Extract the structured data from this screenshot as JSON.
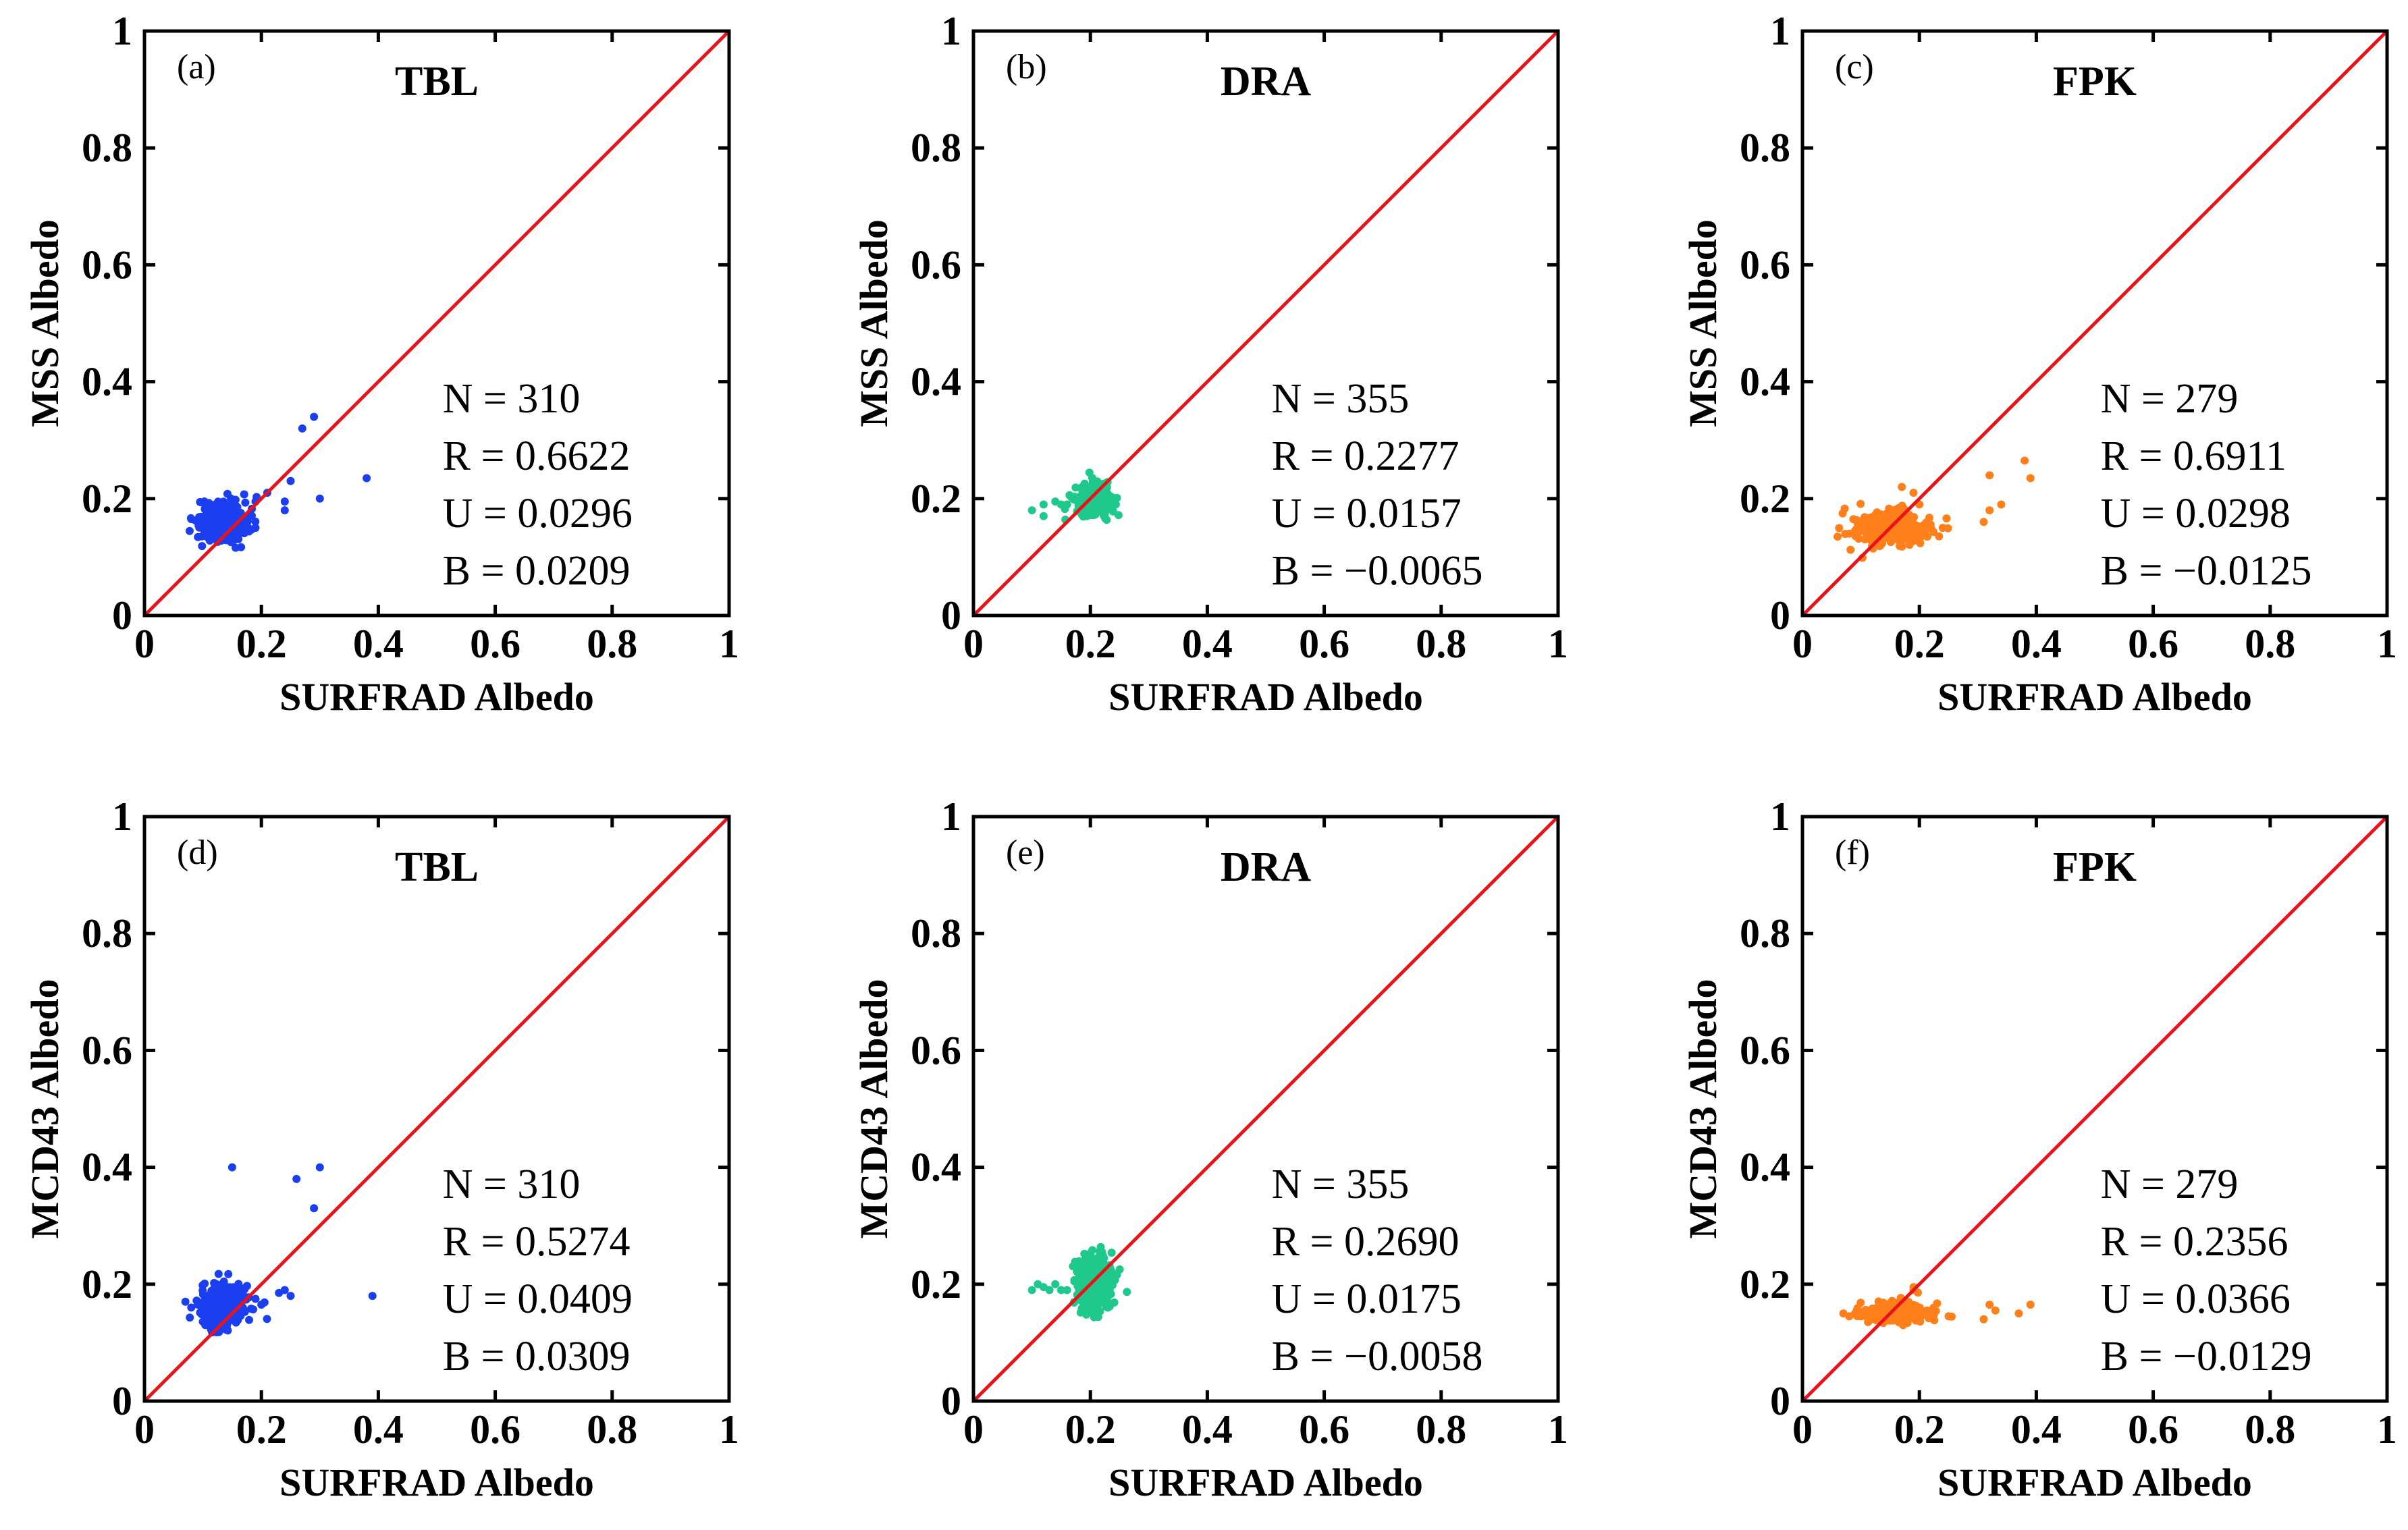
{
  "colors": {
    "TBL": "#1a3ef0",
    "DRA": "#1fc98c",
    "FPK": "#ff7f1a",
    "reference_line": "#e8141c"
  },
  "chart_data": [
    {
      "panel": "(a)",
      "site": "TBL",
      "type": "scatter",
      "xlabel": "SURFRAD Albedo",
      "ylabel": "MSS Albedo",
      "xlim": [
        0,
        1
      ],
      "ylim": [
        0,
        1
      ],
      "ticks": [
        "0",
        "0.2",
        "0.4",
        "0.6",
        "0.8",
        "1"
      ],
      "stats": [
        "N = 310",
        "R = 0.6622",
        "U = 0.0296",
        "B = 0.0209"
      ],
      "outliers": [
        [
          0.08,
          0.165
        ],
        [
          0.1,
          0.16
        ],
        [
          0.16,
          0.175
        ],
        [
          0.17,
          0.16
        ],
        [
          0.19,
          0.15
        ],
        [
          0.19,
          0.195
        ],
        [
          0.21,
          0.21
        ],
        [
          0.24,
          0.18
        ],
        [
          0.24,
          0.195
        ],
        [
          0.25,
          0.23
        ],
        [
          0.27,
          0.32
        ],
        [
          0.29,
          0.34
        ],
        [
          0.3,
          0.2
        ],
        [
          0.38,
          0.235
        ]
      ],
      "cluster": {
        "x_center": 0.135,
        "y_center": 0.16,
        "x_spread": 0.05,
        "y_spread": 0.042,
        "count": 296
      }
    },
    {
      "panel": "(b)",
      "site": "DRA",
      "type": "scatter",
      "xlabel": "SURFRAD Albedo",
      "ylabel": "MSS Albedo",
      "xlim": [
        0,
        1
      ],
      "ylim": [
        0,
        1
      ],
      "ticks": [
        "0",
        "0.2",
        "0.4",
        "0.6",
        "0.8",
        "1"
      ],
      "stats": [
        "N = 355",
        "R = 0.2277",
        "U = 0.0157",
        "B = −0.0065"
      ],
      "outliers": [
        [
          0.1,
          0.18
        ],
        [
          0.12,
          0.19
        ],
        [
          0.12,
          0.17
        ],
        [
          0.14,
          0.195
        ],
        [
          0.15,
          0.19
        ],
        [
          0.16,
          0.19
        ],
        [
          0.17,
          0.2
        ],
        [
          0.18,
          0.19
        ],
        [
          0.22,
          0.215
        ]
      ],
      "cluster": {
        "x_center": 0.205,
        "y_center": 0.198,
        "x_spread": 0.035,
        "y_spread": 0.03,
        "count": 346
      }
    },
    {
      "panel": "(c)",
      "site": "FPK",
      "type": "scatter",
      "xlabel": "SURFRAD Albedo",
      "ylabel": "MSS Albedo",
      "xlim": [
        0,
        1
      ],
      "ylim": [
        0,
        1
      ],
      "ticks": [
        "0",
        "0.2",
        "0.4",
        "0.6",
        "0.8",
        "1"
      ],
      "stats": [
        "N = 279",
        "R = 0.6911",
        "U = 0.0298",
        "B = −0.0125"
      ],
      "outliers": [
        [
          0.06,
          0.135
        ],
        [
          0.08,
          0.14
        ],
        [
          0.09,
          0.145
        ],
        [
          0.1,
          0.15
        ],
        [
          0.17,
          0.22
        ],
        [
          0.19,
          0.21
        ],
        [
          0.2,
          0.19
        ],
        [
          0.24,
          0.15
        ],
        [
          0.31,
          0.16
        ],
        [
          0.32,
          0.18
        ],
        [
          0.32,
          0.24
        ],
        [
          0.34,
          0.19
        ],
        [
          0.38,
          0.265
        ],
        [
          0.39,
          0.235
        ]
      ],
      "cluster": {
        "x_center": 0.15,
        "y_center": 0.15,
        "x_spread": 0.075,
        "y_spread": 0.035,
        "count": 265
      }
    },
    {
      "panel": "(d)",
      "site": "TBL",
      "type": "scatter",
      "xlabel": "SURFRAD Albedo",
      "ylabel": "MCD43 Albedo",
      "xlim": [
        0,
        1
      ],
      "ylim": [
        0,
        1
      ],
      "ticks": [
        "0",
        "0.2",
        "0.4",
        "0.6",
        "0.8",
        "1"
      ],
      "stats": [
        "N = 310",
        "R = 0.5274",
        "U = 0.0409",
        "B = 0.0309"
      ],
      "outliers": [
        [
          0.07,
          0.17
        ],
        [
          0.08,
          0.16
        ],
        [
          0.15,
          0.4
        ],
        [
          0.16,
          0.165
        ],
        [
          0.17,
          0.18
        ],
        [
          0.19,
          0.175
        ],
        [
          0.2,
          0.165
        ],
        [
          0.23,
          0.185
        ],
        [
          0.24,
          0.19
        ],
        [
          0.25,
          0.18
        ],
        [
          0.26,
          0.38
        ],
        [
          0.29,
          0.33
        ],
        [
          0.3,
          0.4
        ],
        [
          0.39,
          0.18
        ]
      ],
      "cluster": {
        "x_center": 0.135,
        "y_center": 0.162,
        "x_spread": 0.05,
        "y_spread": 0.045,
        "count": 296
      }
    },
    {
      "panel": "(e)",
      "site": "DRA",
      "type": "scatter",
      "xlabel": "SURFRAD Albedo",
      "ylabel": "MCD43 Albedo",
      "xlim": [
        0,
        1
      ],
      "ylim": [
        0,
        1
      ],
      "ticks": [
        "0",
        "0.2",
        "0.4",
        "0.6",
        "0.8",
        "1"
      ],
      "stats": [
        "N = 355",
        "R = 0.2690",
        "U = 0.0175",
        "B = −0.0058"
      ],
      "outliers": [
        [
          0.1,
          0.19
        ],
        [
          0.11,
          0.2
        ],
        [
          0.12,
          0.195
        ],
        [
          0.13,
          0.19
        ],
        [
          0.14,
          0.2
        ],
        [
          0.15,
          0.19
        ],
        [
          0.16,
          0.19
        ],
        [
          0.19,
          0.16
        ],
        [
          0.2,
          0.155
        ],
        [
          0.21,
          0.155
        ],
        [
          0.22,
          0.25
        ],
        [
          0.22,
          0.255
        ]
      ],
      "cluster": {
        "x_center": 0.205,
        "y_center": 0.2,
        "x_spread": 0.035,
        "y_spread": 0.06,
        "count": 343
      }
    },
    {
      "panel": "(f)",
      "site": "FPK",
      "type": "scatter",
      "xlabel": "SURFRAD Albedo",
      "ylabel": "MCD43 Albedo",
      "xlim": [
        0,
        1
      ],
      "ylim": [
        0,
        1
      ],
      "ticks": [
        "0",
        "0.2",
        "0.4",
        "0.6",
        "0.8",
        "1"
      ],
      "stats": [
        "N = 279",
        "R = 0.2356",
        "U = 0.0366",
        "B = −0.0129"
      ],
      "outliers": [
        [
          0.07,
          0.15
        ],
        [
          0.08,
          0.145
        ],
        [
          0.09,
          0.15
        ],
        [
          0.1,
          0.145
        ],
        [
          0.19,
          0.19
        ],
        [
          0.19,
          0.195
        ],
        [
          0.22,
          0.155
        ],
        [
          0.25,
          0.145
        ],
        [
          0.31,
          0.14
        ],
        [
          0.32,
          0.165
        ],
        [
          0.33,
          0.155
        ],
        [
          0.37,
          0.15
        ],
        [
          0.39,
          0.165
        ]
      ],
      "cluster": {
        "x_center": 0.16,
        "y_center": 0.152,
        "x_spread": 0.07,
        "y_spread": 0.02,
        "count": 266
      }
    }
  ]
}
